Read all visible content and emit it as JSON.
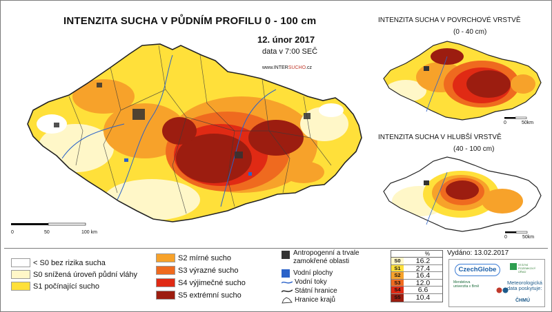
{
  "header": {
    "title": "INTENZITA SUCHA V PŮDNÍM PROFILU 0 - 100 cm",
    "date": "12. únor 2017",
    "date_sub": "data v 7:00 SEČ",
    "web_prefix": "www.INTER",
    "web_accent": "SUCHO",
    "web_suffix": ".cz"
  },
  "insets": {
    "surface": {
      "title": "INTENZITA SUCHA V POVRCHOVÉ VRSTVĚ",
      "subtitle": "(0 - 40 cm)"
    },
    "deep": {
      "title": "INTENZITA SUCHA V HLUBŠÍ VRSTVĚ",
      "subtitle": "(40 - 100 cm)"
    }
  },
  "scalebars": {
    "main": {
      "ticks": [
        "0",
        "50",
        "100 km"
      ]
    },
    "small": {
      "ticks": [
        "0",
        "50km"
      ]
    }
  },
  "legend": {
    "classes": [
      {
        "label": "< S0 bez rizika sucha",
        "color": "#ffffff"
      },
      {
        "label": "S0 snížená úroveň půdní vláhy",
        "color": "#fff7c8"
      },
      {
        "label": "S1 počínající sucho",
        "color": "#ffe03a"
      },
      {
        "label": "S2 mírné sucho",
        "color": "#f7a22a"
      },
      {
        "label": "S3 výrazné sucho",
        "color": "#ef6a1f"
      },
      {
        "label": "S4 výjimečné sucho",
        "color": "#e02a14"
      },
      {
        "label": "S5 extrémní sucho",
        "color": "#9c1d10"
      }
    ],
    "symbols": [
      {
        "label": "Antropogenní a trvale zamokřené oblasti",
        "icon": "square-dark-icon",
        "color": "#333333"
      },
      {
        "label": "Vodní plochy",
        "icon": "square-blue-icon",
        "color": "#2a62c9"
      },
      {
        "label": "Vodní toky",
        "icon": "river-line-icon",
        "color": "#2a62c9"
      },
      {
        "label": "Státní hranice",
        "icon": "state-border-icon",
        "color": "#333333"
      },
      {
        "label": "Hranice krajů",
        "icon": "region-border-icon",
        "color": "#333333"
      }
    ]
  },
  "percent_table": {
    "header": "%",
    "rows": [
      {
        "cls": "S0",
        "value": "16.2",
        "color": "#fff7c8"
      },
      {
        "cls": "S1",
        "value": "27.4",
        "color": "#ffe03a"
      },
      {
        "cls": "S2",
        "value": "16.4",
        "color": "#f7a22a"
      },
      {
        "cls": "S3",
        "value": "12.0",
        "color": "#ef6a1f"
      },
      {
        "cls": "S4",
        "value": "6.6",
        "color": "#e02a14"
      },
      {
        "cls": "S5",
        "value": "10.4",
        "color": "#9c1d10"
      }
    ]
  },
  "issued": "Vydáno: 13.02.2017",
  "logos": {
    "czechglobe": "CzechGlobe",
    "green": "STÁTNÍ POZEMKOVÝ ÚŘAD",
    "mendel": "Mendelova univerzita v Brně",
    "meteo": "Meteorologická data poskytuje:",
    "chmu": "ČHMÚ"
  }
}
